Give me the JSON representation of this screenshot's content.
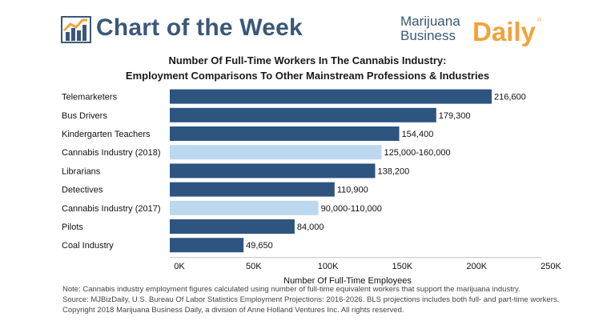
{
  "header": {
    "title": "Chart of the Week",
    "brand_line1": "Marijuana",
    "brand_line2": "Business",
    "brand_daily": "Daily",
    "brand_mark": "®"
  },
  "colors": {
    "bar_dark": "#2e5480",
    "bar_light": "#bcd8ef",
    "header_blue": "#3a5878",
    "brand_orange": "#f0a33a"
  },
  "chart_data": {
    "type": "bar",
    "orientation": "horizontal",
    "title_line1": "Number Of Full-Time Workers In The Cannabis Industry:",
    "title_line2": "Employment Comparisons To Other Mainstream Professions & Industries",
    "xlabel": "Number Of Full-Time Employees",
    "xlim": [
      0,
      250000
    ],
    "x_ticks": [
      0,
      50000,
      100000,
      150000,
      200000,
      250000
    ],
    "x_tick_labels": [
      "0K",
      "50K",
      "100K",
      "150K",
      "200K",
      "250K"
    ],
    "categories": [
      "Telemarketers",
      "Bus Drivers",
      "Kindergarten Teachers",
      "Cannabis Industry (2018)",
      "Librarians",
      "Detectives",
      "Cannabis Industry (2017)",
      "Pilots",
      "Coal Industry"
    ],
    "values": [
      216600,
      179300,
      154400,
      142500,
      138200,
      110900,
      100000,
      84000,
      49650
    ],
    "ranges": [
      null,
      null,
      null,
      [
        125000,
        160000
      ],
      null,
      null,
      [
        90000,
        110000
      ],
      null,
      null
    ],
    "highlight": [
      false,
      false,
      false,
      true,
      false,
      false,
      true,
      false,
      false
    ],
    "value_labels": [
      "216,600",
      "179,300",
      "154,400",
      "125,000-160,000",
      "138,200",
      "110,900",
      "90,000-110,000",
      "84,000",
      "49,650"
    ]
  },
  "notes": [
    "Note: Cannabis industry employment figures calculated using number of full-time equivalent workers that support the marijuana industry.",
    "Source: MJBizDaily, U.S. Bureau Of Labor Statistics Employment Projections: 2016-2026. BLS projections includes both full- and part-time workers.",
    "Copyright 2018 Marijuana Business Daily, a division of Anne Holland Ventures Inc. All rights reserved."
  ]
}
